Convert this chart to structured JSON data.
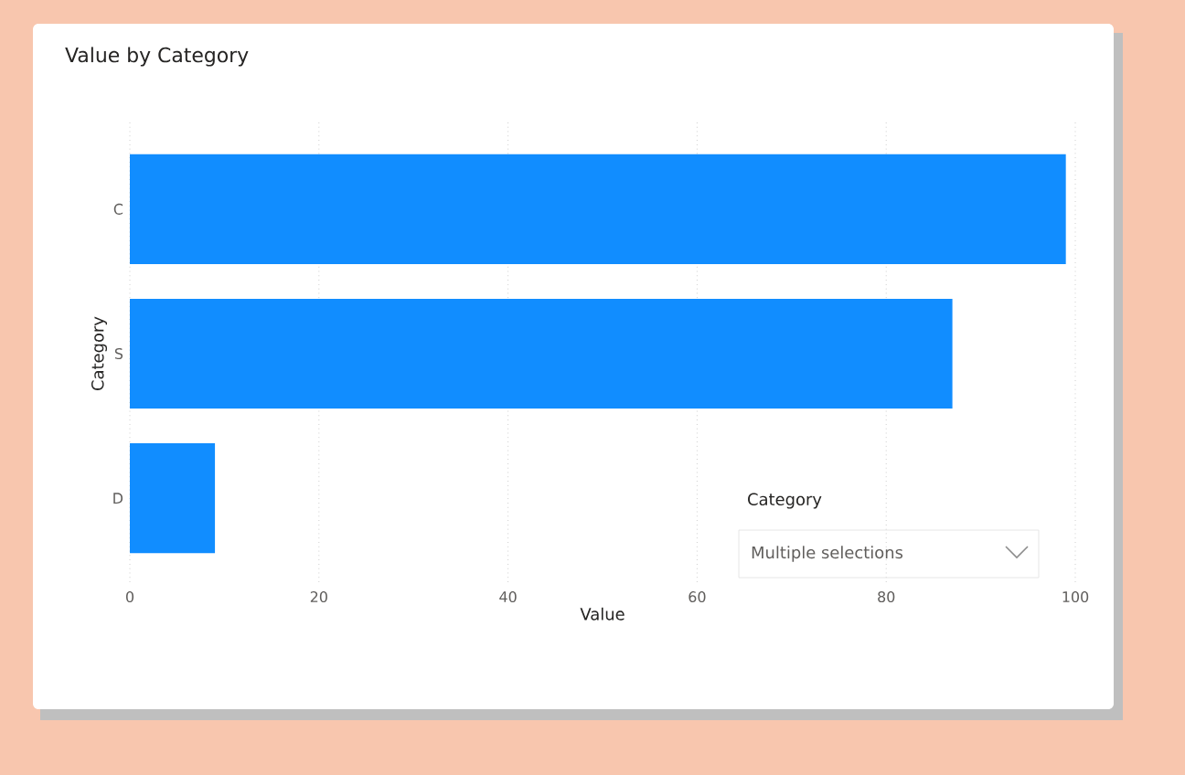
{
  "chart_data": {
    "type": "bar",
    "orientation": "horizontal",
    "title": "Value by Category",
    "xlabel": "Value",
    "ylabel": "Category",
    "categories": [
      "C",
      "S",
      "D"
    ],
    "values": [
      99,
      87,
      9
    ],
    "color": "#118dff",
    "xlim": [
      0,
      100
    ],
    "xticks": [
      0,
      20,
      40,
      60,
      80,
      100
    ],
    "grid": "x",
    "annotations": [
      "Category",
      "Multiple selections"
    ]
  }
}
